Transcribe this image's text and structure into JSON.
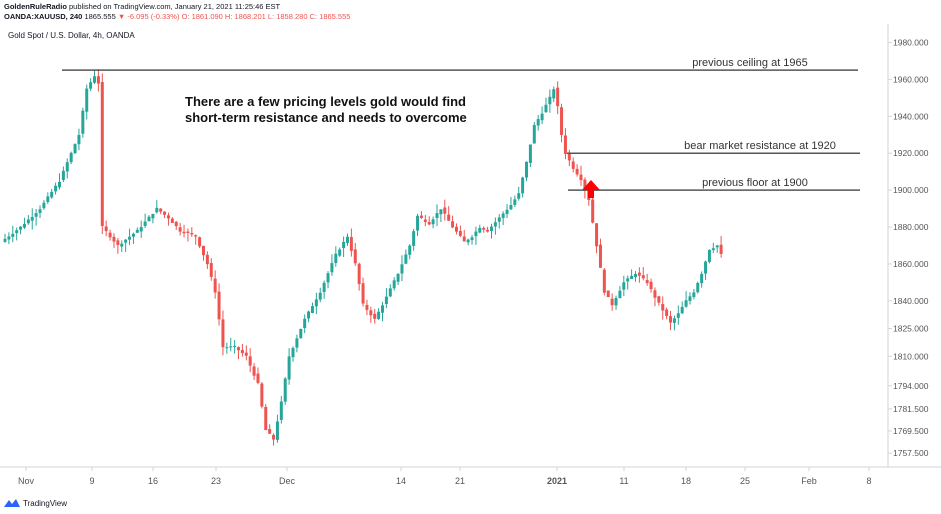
{
  "header": {
    "publisher": "GoldenRuleRadio",
    "published_text": "published on TradingView.com, January 21, 2021 11:25:46 EST",
    "symbol": "OANDA:XAUUSD, 240",
    "last": "1865.555",
    "change": "▼ -6.095 (-0.33%)",
    "ohlc": "O: 1861.090 H: 1868.201 L: 1858.280 C: 1865.555"
  },
  "instrument_title": "Gold Spot / U.S. Dollar, 4h, OANDA",
  "footer": {
    "brand": "TradingView"
  },
  "colors": {
    "up": "#26a69a",
    "down": "#ef5350",
    "line": "#555555",
    "arrow": "#ff0000",
    "axis_text": "#555555"
  },
  "chart_data": {
    "type": "candlestick",
    "title": "Gold Spot / U.S. Dollar, 4h, OANDA",
    "ylim": [
      1750,
      1990
    ],
    "y_ticks": [
      "1980.000",
      "1960.000",
      "1940.000",
      "1920.000",
      "1900.000",
      "1880.000",
      "1860.000",
      "1840.000",
      "1825.000",
      "1810.000",
      "1794.000",
      "1781.500",
      "1769.500",
      "1757.500"
    ],
    "x_ticks": [
      "Nov",
      "9",
      "16",
      "23",
      "Dec",
      "14",
      "21",
      "2021",
      "11",
      "18",
      "25",
      "Feb",
      "8"
    ],
    "levels": [
      {
        "label": "previous ceiling at 1965",
        "value": 1965
      },
      {
        "label": "bear market resistance at 1920",
        "value": 1920
      },
      {
        "label": "previous floor at 1900",
        "value": 1900
      }
    ],
    "annotation": "There are a few pricing levels gold would find\nshort-term resistance and needs to overcome",
    "path_points": [
      [
        0,
        1872
      ],
      [
        5,
        1880
      ],
      [
        10,
        1890
      ],
      [
        15,
        1905
      ],
      [
        20,
        1930
      ],
      [
        22,
        1955
      ],
      [
        24,
        1962
      ],
      [
        25,
        1958
      ],
      [
        26,
        1880
      ],
      [
        30,
        1870
      ],
      [
        35,
        1878
      ],
      [
        40,
        1890
      ],
      [
        43,
        1885
      ],
      [
        46,
        1878
      ],
      [
        50,
        1875
      ],
      [
        53,
        1860
      ],
      [
        55,
        1845
      ],
      [
        57,
        1815
      ],
      [
        60,
        1815
      ],
      [
        63,
        1810
      ],
      [
        66,
        1795
      ],
      [
        68,
        1770
      ],
      [
        70,
        1765
      ],
      [
        72,
        1785
      ],
      [
        74,
        1810
      ],
      [
        78,
        1830
      ],
      [
        82,
        1845
      ],
      [
        86,
        1865
      ],
      [
        89,
        1875
      ],
      [
        91,
        1860
      ],
      [
        93,
        1838
      ],
      [
        96,
        1830
      ],
      [
        99,
        1842
      ],
      [
        102,
        1855
      ],
      [
        105,
        1870
      ],
      [
        107,
        1886
      ],
      [
        110,
        1882
      ],
      [
        113,
        1890
      ],
      [
        116,
        1880
      ],
      [
        119,
        1872
      ],
      [
        121,
        1875
      ],
      [
        123,
        1880
      ],
      [
        125,
        1878
      ],
      [
        128,
        1885
      ],
      [
        131,
        1892
      ],
      [
        133,
        1898
      ],
      [
        135,
        1915
      ],
      [
        137,
        1935
      ],
      [
        139,
        1942
      ],
      [
        141,
        1950
      ],
      [
        142,
        1955
      ],
      [
        143,
        1945
      ],
      [
        144,
        1930
      ],
      [
        145,
        1920
      ],
      [
        147,
        1912
      ],
      [
        149,
        1906
      ],
      [
        151,
        1895
      ],
      [
        153,
        1870
      ],
      [
        155,
        1845
      ],
      [
        157,
        1838
      ],
      [
        160,
        1850
      ],
      [
        163,
        1855
      ],
      [
        166,
        1850
      ],
      [
        168,
        1842
      ],
      [
        170,
        1835
      ],
      [
        172,
        1828
      ],
      [
        174,
        1833
      ],
      [
        176,
        1840
      ],
      [
        178,
        1845
      ],
      [
        180,
        1855
      ],
      [
        182,
        1868
      ],
      [
        184,
        1870
      ],
      [
        185,
        1865
      ]
    ]
  }
}
